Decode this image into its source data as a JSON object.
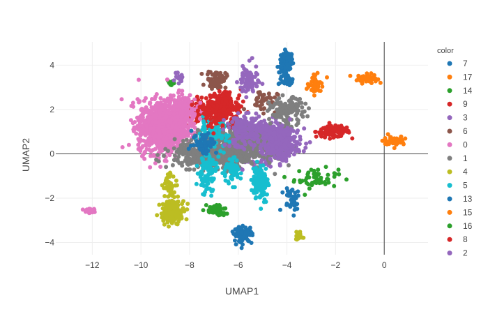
{
  "chart_data": {
    "type": "scatter",
    "title": "",
    "xlabel": "UMAP1",
    "ylabel": "UMAP2",
    "xlim": [
      -13.5,
      1.8
    ],
    "ylim": [
      -4.55,
      5.05
    ],
    "xticks": [
      -12,
      -10,
      -8,
      -6,
      -4,
      -2,
      0
    ],
    "yticks": [
      -4,
      -2,
      0,
      2,
      4
    ],
    "xtick_labels": [
      "−12",
      "−10",
      "−8",
      "−6",
      "−4",
      "−2",
      "0"
    ],
    "ytick_labels": [
      "−4",
      "−2",
      "0",
      "2",
      "4"
    ],
    "grid": true,
    "zero_lines": true,
    "legend_title": "color",
    "legend_position": "right",
    "series": [
      {
        "name": "7",
        "color": "#1f77b4",
        "clusters": [
          {
            "cx": -4.0,
            "cy": 4.2,
            "sx": 0.12,
            "sy": 0.2,
            "n": 90
          },
          {
            "cx": -4.15,
            "cy": 3.6,
            "sx": 0.1,
            "sy": 0.3,
            "n": 40
          },
          {
            "cx": -3.9,
            "cy": 3.3,
            "sx": 0.1,
            "sy": 0.12,
            "n": 20
          }
        ]
      },
      {
        "name": "17",
        "color": "#ff7f0e",
        "clusters": [
          {
            "cx": -0.7,
            "cy": 3.4,
            "sx": 0.2,
            "sy": 0.1,
            "n": 60
          }
        ]
      },
      {
        "name": "14",
        "color": "#2ca02c",
        "clusters": [
          {
            "cx": -2.8,
            "cy": -1.1,
            "sx": 0.45,
            "sy": 0.22,
            "n": 55
          },
          {
            "cx": -8.75,
            "cy": 3.2,
            "sx": 0.08,
            "sy": 0.08,
            "n": 15
          }
        ]
      },
      {
        "name": "9",
        "color": "#d62728",
        "clusters": [
          {
            "cx": -2.1,
            "cy": 1.0,
            "sx": 0.35,
            "sy": 0.12,
            "n": 120
          },
          {
            "cx": -7.3,
            "cy": 1.9,
            "sx": 0.45,
            "sy": 0.3,
            "n": 150
          },
          {
            "cx": -6.5,
            "cy": 2.2,
            "sx": 0.3,
            "sy": 0.35,
            "n": 90
          }
        ]
      },
      {
        "name": "3",
        "color": "#9467bd",
        "clusters": [
          {
            "cx": -5.0,
            "cy": 0.6,
            "sx": 0.65,
            "sy": 0.45,
            "n": 650
          },
          {
            "cx": -5.6,
            "cy": 3.3,
            "sx": 0.2,
            "sy": 0.35,
            "n": 80
          },
          {
            "cx": -8.45,
            "cy": 3.4,
            "sx": 0.08,
            "sy": 0.1,
            "n": 15
          }
        ]
      },
      {
        "name": "6",
        "color": "#8c564b",
        "clusters": [
          {
            "cx": -6.9,
            "cy": 3.35,
            "sx": 0.2,
            "sy": 0.2,
            "n": 70
          },
          {
            "cx": -5.0,
            "cy": 2.4,
            "sx": 0.3,
            "sy": 0.25,
            "n": 40
          }
        ]
      },
      {
        "name": "0",
        "color": "#e377c2",
        "clusters": [
          {
            "cx": -9.1,
            "cy": 1.2,
            "sx": 0.5,
            "sy": 0.6,
            "n": 950
          },
          {
            "cx": -8.3,
            "cy": 2.0,
            "sx": 0.3,
            "sy": 0.35,
            "n": 150
          },
          {
            "cx": -12.1,
            "cy": -2.55,
            "sx": 0.12,
            "sy": 0.06,
            "n": 40
          }
        ]
      },
      {
        "name": "1",
        "color": "#7f7f7f",
        "clusters": [
          {
            "cx": -6.8,
            "cy": 0.0,
            "sx": 0.9,
            "sy": 0.3,
            "n": 650
          },
          {
            "cx": -6.3,
            "cy": 0.6,
            "sx": 0.6,
            "sy": 0.3,
            "n": 200
          },
          {
            "cx": -4.0,
            "cy": 1.9,
            "sx": 0.35,
            "sy": 0.3,
            "n": 140
          }
        ]
      },
      {
        "name": "4",
        "color": "#bcbd22",
        "clusters": [
          {
            "cx": -8.7,
            "cy": -2.6,
            "sx": 0.25,
            "sy": 0.25,
            "n": 150
          },
          {
            "cx": -8.8,
            "cy": -1.45,
            "sx": 0.15,
            "sy": 0.3,
            "n": 50
          },
          {
            "cx": -3.5,
            "cy": -3.7,
            "sx": 0.08,
            "sy": 0.1,
            "n": 20
          }
        ]
      },
      {
        "name": "5",
        "color": "#17becf",
        "clusters": [
          {
            "cx": -5.1,
            "cy": -1.3,
            "sx": 0.15,
            "sy": 0.4,
            "n": 130
          },
          {
            "cx": -7.3,
            "cy": -0.8,
            "sx": 0.2,
            "sy": 0.5,
            "n": 100
          },
          {
            "cx": -6.3,
            "cy": -0.8,
            "sx": 0.2,
            "sy": 0.3,
            "n": 60
          },
          {
            "cx": -7.1,
            "cy": 0.9,
            "sx": 0.35,
            "sy": 0.3,
            "n": 70
          }
        ]
      },
      {
        "name": "13",
        "color": "#1f77b4",
        "clusters": [
          {
            "cx": -5.8,
            "cy": -3.65,
            "sx": 0.18,
            "sy": 0.18,
            "n": 90
          },
          {
            "cx": -3.8,
            "cy": -2.0,
            "sx": 0.2,
            "sy": 0.3,
            "n": 40
          },
          {
            "cx": -7.4,
            "cy": 0.5,
            "sx": 0.25,
            "sy": 0.25,
            "n": 60
          }
        ]
      },
      {
        "name": "15",
        "color": "#ff7f0e",
        "clusters": [
          {
            "cx": 0.4,
            "cy": 0.6,
            "sx": 0.22,
            "sy": 0.1,
            "n": 60
          },
          {
            "cx": -2.8,
            "cy": 3.1,
            "sx": 0.18,
            "sy": 0.2,
            "n": 45
          }
        ]
      },
      {
        "name": "16",
        "color": "#2ca02c",
        "clusters": [
          {
            "cx": -6.9,
            "cy": -2.55,
            "sx": 0.2,
            "sy": 0.15,
            "n": 45
          }
        ]
      },
      {
        "name": "8",
        "color": "#d62728",
        "clusters": [
          {
            "cx": -6.7,
            "cy": 1.9,
            "sx": 0.4,
            "sy": 0.35,
            "n": 120
          }
        ]
      },
      {
        "name": "2",
        "color": "#9467bd",
        "clusters": [
          {
            "cx": -4.3,
            "cy": 0.4,
            "sx": 0.35,
            "sy": 0.35,
            "n": 160
          },
          {
            "cx": -5.7,
            "cy": 1.0,
            "sx": 0.4,
            "sy": 0.35,
            "n": 150
          }
        ]
      }
    ]
  }
}
